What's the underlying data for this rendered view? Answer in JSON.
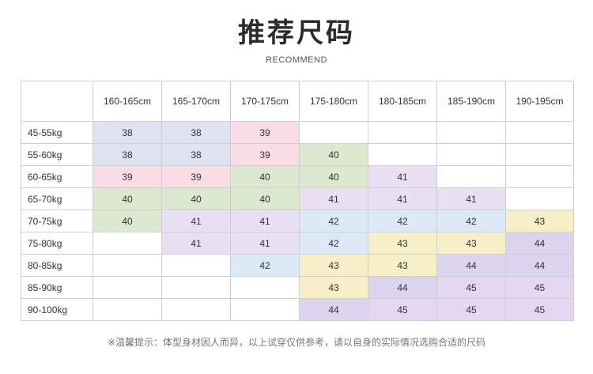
{
  "title": "推荐尺码",
  "subtitle": "RECOMMEND",
  "corner": "",
  "heights": [
    "160-165cm",
    "165-170cm",
    "170-175cm",
    "175-180cm",
    "180-185cm",
    "185-190cm",
    "190-195cm"
  ],
  "rows": [
    {
      "weight": "45-55kg",
      "sizes": [
        "38",
        "38",
        "39",
        "",
        "",
        "",
        ""
      ]
    },
    {
      "weight": "55-60kg",
      "sizes": [
        "38",
        "38",
        "39",
        "40",
        "",
        "",
        ""
      ]
    },
    {
      "weight": "60-65kg",
      "sizes": [
        "39",
        "39",
        "40",
        "40",
        "41",
        "",
        ""
      ]
    },
    {
      "weight": "65-70kg",
      "sizes": [
        "40",
        "40",
        "40",
        "41",
        "41",
        "41",
        ""
      ]
    },
    {
      "weight": "70-75kg",
      "sizes": [
        "40",
        "41",
        "41",
        "42",
        "42",
        "42",
        "43"
      ]
    },
    {
      "weight": "75-80kg",
      "sizes": [
        "",
        "41",
        "41",
        "42",
        "43",
        "43",
        "44"
      ]
    },
    {
      "weight": "80-85kg",
      "sizes": [
        "",
        "",
        "42",
        "43",
        "43",
        "44",
        "44"
      ]
    },
    {
      "weight": "85-90kg",
      "sizes": [
        "",
        "",
        "",
        "43",
        "44",
        "45",
        "45"
      ]
    },
    {
      "weight": "90-100kg",
      "sizes": [
        "",
        "",
        "",
        "44",
        "45",
        "45",
        "45"
      ]
    }
  ],
  "size_colors": {
    "38": "#dfe2f1",
    "39": "#f8dde4",
    "40": "#dde8d0",
    "41": "#e9e1f3",
    "42": "#dbeaf6",
    "43": "#f7efc8",
    "44": "#dcd5f0",
    "45": "#e6d7f1"
  },
  "footer_note": "※温馨提示：体型身材因人而异，以上试穿仅供参考，请以自身的实际情况选购合适的尺码"
}
